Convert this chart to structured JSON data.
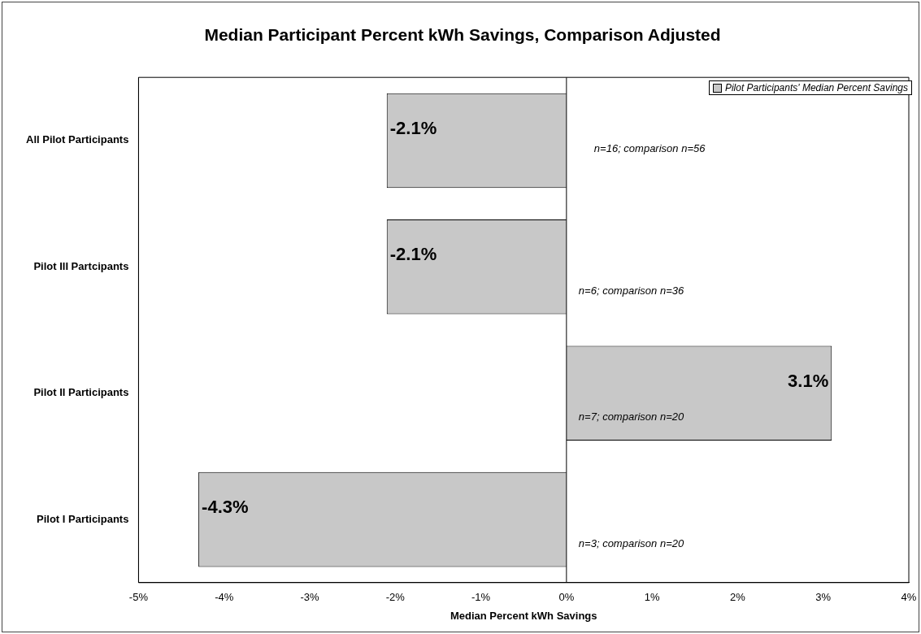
{
  "chart_data": {
    "type": "bar",
    "orientation": "horizontal",
    "title": "Median Participant Percent kWh Savings, Comparison Adjusted",
    "xlabel": "Median Percent kWh Savings",
    "categories": [
      "All Pilot Participants",
      "Pilot III Partcipants",
      "Pilot II Participants",
      "Pilot I Participants"
    ],
    "series": [
      {
        "name": "Pilot Participants' Median Percent Savings",
        "color": "#c8c8c8",
        "values": [
          -2.1,
          -2.1,
          3.1,
          -4.3
        ],
        "value_labels": [
          "-2.1%",
          "-2.1%",
          "3.1%",
          "-4.3%"
        ]
      }
    ],
    "xlim": [
      -5,
      4
    ],
    "xticks": [
      {
        "value": -5,
        "label": "-5%"
      },
      {
        "value": -4,
        "label": "-4%"
      },
      {
        "value": -3,
        "label": "-3%"
      },
      {
        "value": -2,
        "label": "-2%"
      },
      {
        "value": -1,
        "label": "-1%"
      },
      {
        "value": 0,
        "label": "0%"
      },
      {
        "value": 1,
        "label": "1%"
      },
      {
        "value": 2,
        "label": "2%"
      },
      {
        "value": 3,
        "label": "3%"
      },
      {
        "value": 4,
        "label": "4%"
      }
    ],
    "annotations": [
      "n=16; comparison n=56",
      "n=6; comparison n=36",
      "n=7; comparison n=20",
      "n=3; comparison n=20"
    ],
    "legend": "top right"
  }
}
